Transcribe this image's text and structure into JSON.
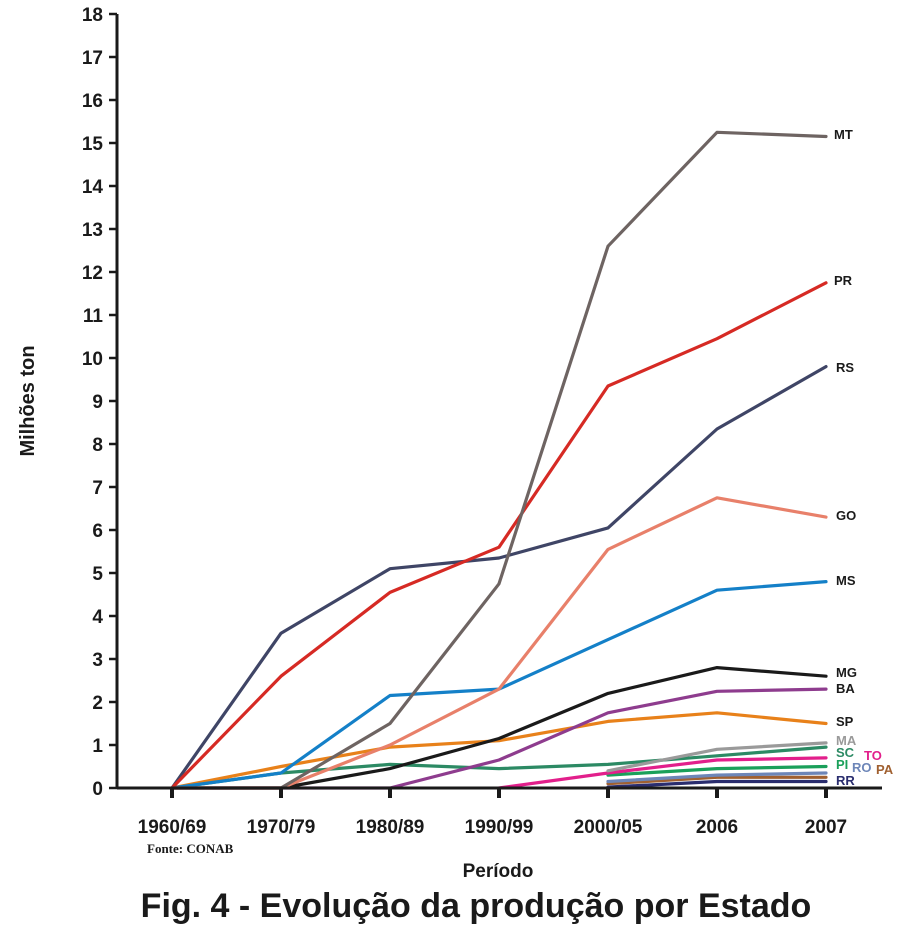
{
  "chart_data": {
    "type": "line",
    "title": "Fig. 4 - Evolução da produção por Estado",
    "xlabel": "Período",
    "ylabel": "Milhões ton",
    "source": "Fonte: CONAB",
    "categories": [
      "1960/69",
      "1970/79",
      "1980/89",
      "1990/99",
      "2000/05",
      "2006",
      "2007"
    ],
    "ylim": [
      0,
      18
    ],
    "yticks": [
      "0",
      "1",
      "2",
      "3",
      "4",
      "5",
      "6",
      "7",
      "8",
      "9",
      "10",
      "11",
      "12",
      "13",
      "14",
      "15",
      "16",
      "17",
      "18"
    ],
    "grid": false,
    "series": [
      {
        "name": "MT",
        "color": "#6e6462",
        "values": [
          0,
          0,
          1.5,
          4.75,
          12.6,
          15.25,
          15.15
        ]
      },
      {
        "name": "PR",
        "color": "#d62a24",
        "values": [
          0,
          2.6,
          4.55,
          5.6,
          9.35,
          10.45,
          11.75
        ]
      },
      {
        "name": "RS",
        "color": "#3f4566",
        "values": [
          0,
          3.6,
          5.1,
          5.35,
          6.05,
          8.35,
          9.8
        ]
      },
      {
        "name": "GO",
        "color": "#e8806a",
        "values": [
          0,
          0,
          1.0,
          2.3,
          5.55,
          6.75,
          6.3
        ]
      },
      {
        "name": "MS",
        "color": "#1480c8",
        "values": [
          0,
          0.35,
          2.15,
          2.3,
          3.45,
          4.6,
          4.8
        ]
      },
      {
        "name": "MG",
        "color": "#1a1a1a",
        "values": [
          0,
          0,
          0.45,
          1.15,
          2.2,
          2.8,
          2.6
        ]
      },
      {
        "name": "BA",
        "color": "#8e3c8e",
        "values": [
          0,
          0,
          0,
          0.65,
          1.75,
          2.25,
          2.3
        ]
      },
      {
        "name": "SP",
        "color": "#e8811a",
        "values": [
          0,
          0.5,
          0.95,
          1.1,
          1.55,
          1.75,
          1.5
        ]
      },
      {
        "name": "MA",
        "color": "#9a9a9a",
        "values": [
          null,
          null,
          null,
          null,
          0.4,
          0.9,
          1.05
        ]
      },
      {
        "name": "SC",
        "color": "#2c8a64",
        "values": [
          0,
          0.35,
          0.55,
          0.45,
          0.55,
          0.75,
          0.95
        ]
      },
      {
        "name": "TO",
        "color": "#e21f8b",
        "values": [
          null,
          null,
          null,
          0,
          0.35,
          0.65,
          0.7
        ]
      },
      {
        "name": "PI",
        "color": "#1aa05a",
        "values": [
          null,
          null,
          null,
          null,
          0.3,
          0.45,
          0.5
        ]
      },
      {
        "name": "RO",
        "color": "#6d86b8",
        "values": [
          null,
          null,
          null,
          null,
          0.15,
          0.3,
          0.35
        ]
      },
      {
        "name": "PA",
        "color": "#a06030",
        "values": [
          null,
          null,
          null,
          null,
          0.1,
          0.25,
          0.25
        ]
      },
      {
        "name": "RR",
        "color": "#2a2d6e",
        "values": [
          null,
          null,
          null,
          null,
          0.02,
          0.15,
          0.15
        ]
      }
    ]
  }
}
